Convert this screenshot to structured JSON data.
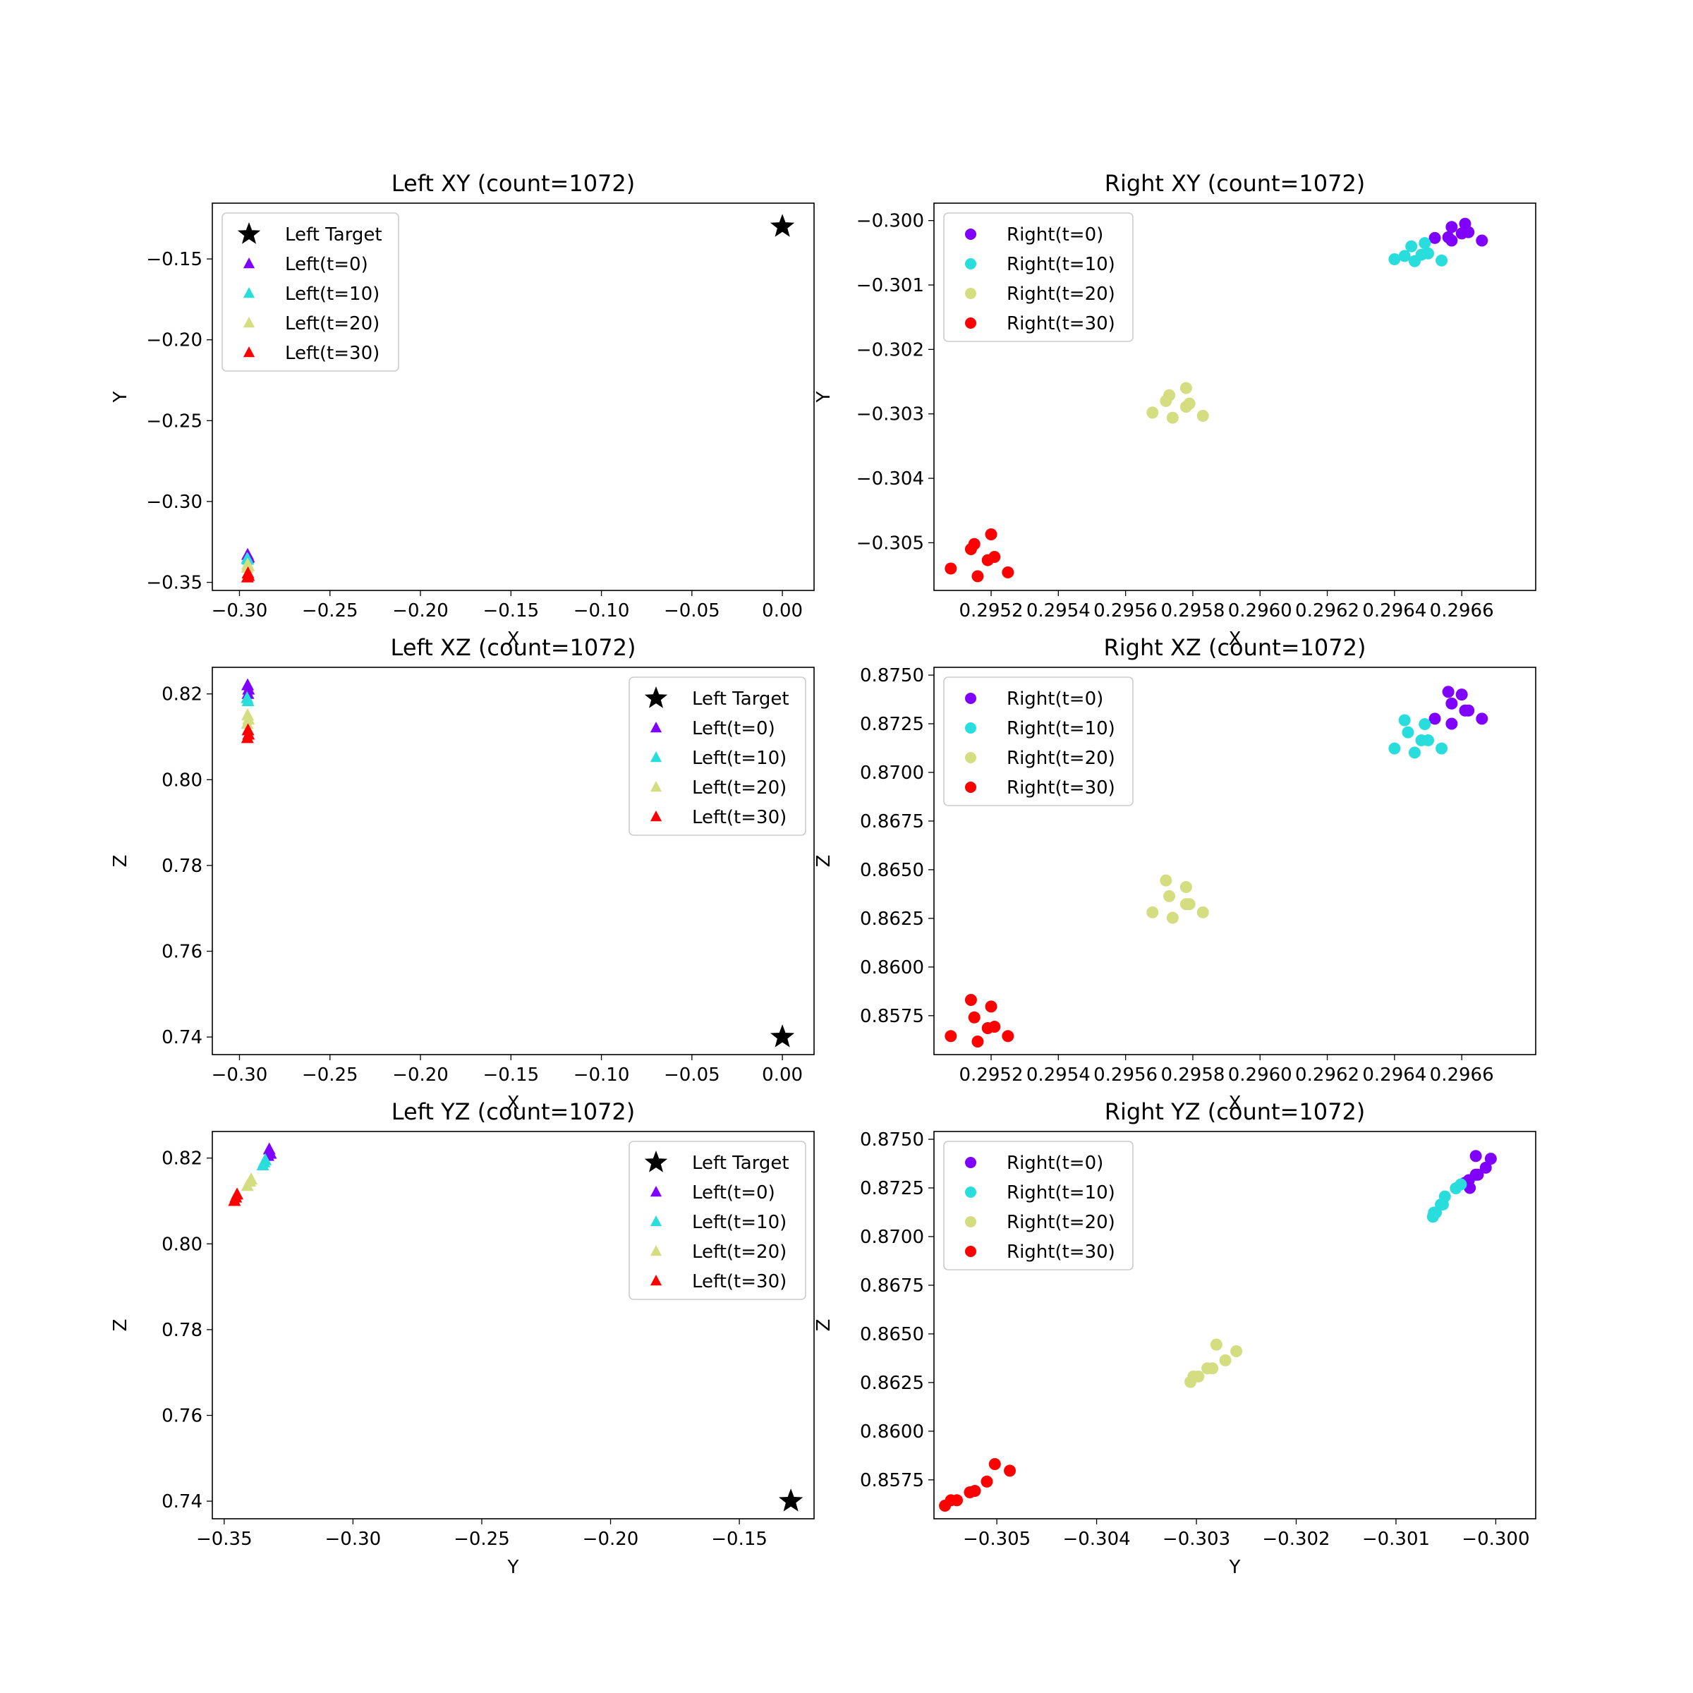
{
  "chart_data": [
    {
      "type": "scatter",
      "panel": "left-xy",
      "title": "Left XY (count=1072)",
      "xlabel": "X",
      "ylabel": "Y",
      "xlim": [
        -0.315,
        0.0175
      ],
      "ylim": [
        -0.355,
        -0.1155
      ],
      "xticks": [
        -0.3,
        -0.25,
        -0.2,
        -0.15,
        -0.1,
        -0.05,
        0.0
      ],
      "xtick_labels": [
        "−0.30",
        "−0.25",
        "−0.20",
        "−0.15",
        "−0.10",
        "−0.05",
        "0.00"
      ],
      "yticks": [
        -0.35,
        -0.3,
        -0.25,
        -0.2,
        -0.15
      ],
      "ytick_labels": [
        "−0.35",
        "−0.30",
        "−0.25",
        "−0.20",
        "−0.15"
      ],
      "legend_position": "upper left",
      "series": [
        {
          "name": "Left Target",
          "marker": "star",
          "color": "#000000",
          "points": [
            [
              0.0,
              -0.13
            ]
          ]
        },
        {
          "name": "Left(t=0)",
          "marker": "triangle",
          "color": "#8000ff",
          "points": [
            [
              -0.2955,
              -0.333
            ],
            [
              -0.295,
              -0.3345
            ],
            [
              -0.2953,
              -0.335
            ]
          ]
        },
        {
          "name": "Left(t=10)",
          "marker": "triangle",
          "color": "#2adddd",
          "points": [
            [
              -0.2958,
              -0.3355
            ],
            [
              -0.2953,
              -0.336
            ]
          ]
        },
        {
          "name": "Left(t=20)",
          "marker": "triangle",
          "color": "#d4dd80",
          "points": [
            [
              -0.2955,
              -0.339
            ],
            [
              -0.295,
              -0.34
            ],
            [
              -0.2957,
              -0.341
            ]
          ]
        },
        {
          "name": "Left(t=30)",
          "marker": "triangle",
          "color": "#ff0000",
          "points": [
            [
              -0.2953,
              -0.3445
            ],
            [
              -0.295,
              -0.346
            ],
            [
              -0.2956,
              -0.347
            ]
          ]
        }
      ]
    },
    {
      "type": "scatter",
      "panel": "right-xy",
      "title": "Right XY (count=1072)",
      "xlabel": "X",
      "ylabel": "Y",
      "xlim": [
        0.29503,
        0.29682
      ],
      "ylim": [
        -0.30574,
        -0.29973
      ],
      "xticks": [
        0.2952,
        0.2954,
        0.2956,
        0.2958,
        0.296,
        0.2962,
        0.2964,
        0.2966
      ],
      "xtick_labels": [
        "0.2952",
        "0.2954",
        "0.2956",
        "0.2958",
        "0.2960",
        "0.2962",
        "0.2964",
        "0.2966"
      ],
      "yticks": [
        -0.305,
        -0.304,
        -0.303,
        -0.302,
        -0.301,
        -0.3
      ],
      "ytick_labels": [
        "−0.305",
        "−0.304",
        "−0.303",
        "−0.302",
        "−0.301",
        "−0.300"
      ],
      "legend_position": "upper left",
      "series": [
        {
          "name": "Right(t=0)",
          "marker": "circle",
          "color": "#8000ff",
          "points": [
            [
              0.29652,
              -0.30027
            ],
            [
              0.29657,
              -0.3001
            ],
            [
              0.29657,
              -0.30031
            ],
            [
              0.2966,
              -0.3002
            ],
            [
              0.29661,
              -0.30005
            ],
            [
              0.29662,
              -0.30018
            ],
            [
              0.29666,
              -0.30031
            ],
            [
              0.29656,
              -0.30026
            ]
          ]
        },
        {
          "name": "Right(t=10)",
          "marker": "circle",
          "color": "#2adddd",
          "points": [
            [
              0.2964,
              -0.3006
            ],
            [
              0.29643,
              -0.30055
            ],
            [
              0.29645,
              -0.3004
            ],
            [
              0.29646,
              -0.30063
            ],
            [
              0.29648,
              -0.30053
            ],
            [
              0.29649,
              -0.30035
            ],
            [
              0.2965,
              -0.30051
            ],
            [
              0.29654,
              -0.30062
            ]
          ]
        },
        {
          "name": "Right(t=20)",
          "marker": "circle",
          "color": "#d4dd80",
          "points": [
            [
              0.29568,
              -0.30298
            ],
            [
              0.29572,
              -0.3028
            ],
            [
              0.29573,
              -0.30271
            ],
            [
              0.29574,
              -0.30306
            ],
            [
              0.29578,
              -0.3026
            ],
            [
              0.29578,
              -0.30289
            ],
            [
              0.29579,
              -0.30284
            ],
            [
              0.29583,
              -0.30303
            ]
          ]
        },
        {
          "name": "Right(t=30)",
          "marker": "circle",
          "color": "#ff0000",
          "points": [
            [
              0.29508,
              -0.3054
            ],
            [
              0.29514,
              -0.3051
            ],
            [
              0.29515,
              -0.30502
            ],
            [
              0.29516,
              -0.30552
            ],
            [
              0.29519,
              -0.30527
            ],
            [
              0.2952,
              -0.30487
            ],
            [
              0.29521,
              -0.30522
            ],
            [
              0.29525,
              -0.30546
            ]
          ]
        }
      ]
    },
    {
      "type": "scatter",
      "panel": "left-xz",
      "title": "Left XZ (count=1072)",
      "xlabel": "X",
      "ylabel": "Z",
      "xlim": [
        -0.315,
        0.0175
      ],
      "ylim": [
        0.7359,
        0.8262
      ],
      "xticks": [
        -0.3,
        -0.25,
        -0.2,
        -0.15,
        -0.1,
        -0.05,
        0.0
      ],
      "xtick_labels": [
        "−0.30",
        "−0.25",
        "−0.20",
        "−0.15",
        "−0.10",
        "−0.05",
        "0.00"
      ],
      "yticks": [
        0.74,
        0.76,
        0.78,
        0.8,
        0.82
      ],
      "ytick_labels": [
        "0.74",
        "0.76",
        "0.78",
        "0.80",
        "0.82"
      ],
      "legend_position": "upper right",
      "series": [
        {
          "name": "Left Target",
          "marker": "star",
          "color": "#000000",
          "points": [
            [
              0.0,
              0.74
            ]
          ]
        },
        {
          "name": "Left(t=0)",
          "marker": "triangle",
          "color": "#8000ff",
          "points": [
            [
              -0.2955,
              0.822
            ],
            [
              -0.295,
              0.821
            ],
            [
              -0.2953,
              0.82
            ]
          ]
        },
        {
          "name": "Left(t=10)",
          "marker": "triangle",
          "color": "#2adddd",
          "points": [
            [
              -0.2958,
              0.819
            ],
            [
              -0.2953,
              0.8183
            ]
          ]
        },
        {
          "name": "Left(t=20)",
          "marker": "triangle",
          "color": "#d4dd80",
          "points": [
            [
              -0.2955,
              0.815
            ],
            [
              -0.295,
              0.814
            ],
            [
              -0.2957,
              0.813
            ]
          ]
        },
        {
          "name": "Left(t=30)",
          "marker": "triangle",
          "color": "#ff0000",
          "points": [
            [
              -0.2953,
              0.8115
            ],
            [
              -0.295,
              0.8105
            ],
            [
              -0.2956,
              0.8097
            ]
          ]
        }
      ]
    },
    {
      "type": "scatter",
      "panel": "right-xz",
      "title": "Right XZ (count=1072)",
      "xlabel": "X",
      "ylabel": "Z",
      "xlim": [
        0.29503,
        0.29682
      ],
      "ylim": [
        0.8555,
        0.8754
      ],
      "xticks": [
        0.2952,
        0.2954,
        0.2956,
        0.2958,
        0.296,
        0.2962,
        0.2964,
        0.2966
      ],
      "xtick_labels": [
        "0.2952",
        "0.2954",
        "0.2956",
        "0.2958",
        "0.2960",
        "0.2962",
        "0.2964",
        "0.2966"
      ],
      "yticks": [
        0.8575,
        0.86,
        0.8625,
        0.865,
        0.8675,
        0.87,
        0.8725,
        0.875
      ],
      "ytick_labels": [
        "0.8575",
        "0.8600",
        "0.8625",
        "0.8650",
        "0.8675",
        "0.8700",
        "0.8725",
        "0.8750"
      ],
      "legend_position": "upper left",
      "series": [
        {
          "name": "Right(t=0)",
          "marker": "circle",
          "color": "#8000ff",
          "points": [
            [
              0.29652,
              0.87276
            ],
            [
              0.29656,
              0.87414
            ],
            [
              0.29657,
              0.87354
            ],
            [
              0.29657,
              0.8725
            ],
            [
              0.2966,
              0.874
            ],
            [
              0.29661,
              0.87318
            ],
            [
              0.29662,
              0.87318
            ],
            [
              0.29666,
              0.87276
            ]
          ]
        },
        {
          "name": "Right(t=10)",
          "marker": "circle",
          "color": "#2adddd",
          "points": [
            [
              0.2964,
              0.87123
            ],
            [
              0.29643,
              0.87268
            ],
            [
              0.29644,
              0.87206
            ],
            [
              0.29646,
              0.87102
            ],
            [
              0.29648,
              0.87165
            ],
            [
              0.29649,
              0.87248
            ],
            [
              0.2965,
              0.87165
            ],
            [
              0.29654,
              0.87123
            ]
          ]
        },
        {
          "name": "Right(t=20)",
          "marker": "circle",
          "color": "#d4dd80",
          "points": [
            [
              0.29568,
              0.86281
            ],
            [
              0.29572,
              0.86445
            ],
            [
              0.29573,
              0.86364
            ],
            [
              0.29574,
              0.86253
            ],
            [
              0.29578,
              0.86411
            ],
            [
              0.29578,
              0.86323
            ],
            [
              0.29579,
              0.86323
            ],
            [
              0.29583,
              0.86281
            ]
          ]
        },
        {
          "name": "Right(t=30)",
          "marker": "circle",
          "color": "#ff0000",
          "points": [
            [
              0.29508,
              0.85645
            ],
            [
              0.29514,
              0.85831
            ],
            [
              0.29515,
              0.85741
            ],
            [
              0.29516,
              0.85617
            ],
            [
              0.29519,
              0.85686
            ],
            [
              0.2952,
              0.85797
            ],
            [
              0.29521,
              0.85693
            ],
            [
              0.29525,
              0.85645
            ]
          ]
        }
      ]
    },
    {
      "type": "scatter",
      "panel": "left-yz",
      "title": "Left YZ (count=1072)",
      "xlabel": "Y",
      "ylabel": "Z",
      "xlim": [
        -0.3546,
        -0.121
      ],
      "ylim": [
        0.7359,
        0.8262
      ],
      "xticks": [
        -0.35,
        -0.3,
        -0.25,
        -0.2,
        -0.15
      ],
      "xtick_labels": [
        "−0.35",
        "−0.30",
        "−0.25",
        "−0.20",
        "−0.15"
      ],
      "yticks": [
        0.74,
        0.76,
        0.78,
        0.8,
        0.82
      ],
      "ytick_labels": [
        "0.74",
        "0.76",
        "0.78",
        "0.80",
        "0.82"
      ],
      "legend_position": "upper right",
      "series": [
        {
          "name": "Left Target",
          "marker": "star",
          "color": "#000000",
          "points": [
            [
              -0.13,
              0.74
            ]
          ]
        },
        {
          "name": "Left(t=0)",
          "marker": "triangle",
          "color": "#8000ff",
          "points": [
            [
              -0.3325,
              0.822
            ],
            [
              -0.332,
              0.821
            ],
            [
              -0.333,
              0.8205
            ]
          ]
        },
        {
          "name": "Left(t=10)",
          "marker": "triangle",
          "color": "#2adddd",
          "points": [
            [
              -0.3345,
              0.819
            ],
            [
              -0.335,
              0.8183
            ],
            [
              -0.334,
              0.8195
            ]
          ]
        },
        {
          "name": "Left(t=20)",
          "marker": "triangle",
          "color": "#d4dd80",
          "points": [
            [
              -0.34,
              0.8145
            ],
            [
              -0.341,
              0.8135
            ],
            [
              -0.3395,
              0.815
            ]
          ]
        },
        {
          "name": "Left(t=30)",
          "marker": "triangle",
          "color": "#ff0000",
          "points": [
            [
              -0.345,
              0.8115
            ],
            [
              -0.346,
              0.81
            ],
            [
              -0.3455,
              0.8108
            ]
          ]
        }
      ]
    },
    {
      "type": "scatter",
      "panel": "right-yz",
      "title": "Right YZ (count=1072)",
      "xlabel": "Y",
      "ylabel": "Z",
      "xlim": [
        -0.30563,
        -0.2996
      ],
      "ylim": [
        0.8555,
        0.8754
      ],
      "xticks": [
        -0.305,
        -0.304,
        -0.303,
        -0.302,
        -0.301,
        -0.3
      ],
      "xtick_labels": [
        "−0.305",
        "−0.304",
        "−0.303",
        "−0.302",
        "−0.301",
        "−0.300"
      ],
      "yticks": [
        0.8575,
        0.86,
        0.8625,
        0.865,
        0.8675,
        0.87,
        0.8725,
        0.875
      ],
      "ytick_labels": [
        "0.8575",
        "0.8600",
        "0.8625",
        "0.8650",
        "0.8675",
        "0.8700",
        "0.8725",
        "0.8750"
      ],
      "legend_position": "upper left",
      "series": [
        {
          "name": "Right(t=0)",
          "marker": "circle",
          "color": "#8000ff",
          "points": [
            [
              -0.30031,
              0.87276
            ],
            [
              -0.30027,
              0.8729
            ],
            [
              -0.30026,
              0.8725
            ],
            [
              -0.3002,
              0.87318
            ],
            [
              -0.30018,
              0.87318
            ],
            [
              -0.3001,
              0.87354
            ],
            [
              -0.30005,
              0.874
            ],
            [
              -0.3002,
              0.87414
            ]
          ]
        },
        {
          "name": "Right(t=10)",
          "marker": "circle",
          "color": "#2adddd",
          "points": [
            [
              -0.30063,
              0.87102
            ],
            [
              -0.30062,
              0.87123
            ],
            [
              -0.3006,
              0.87123
            ],
            [
              -0.30055,
              0.87165
            ],
            [
              -0.30053,
              0.87165
            ],
            [
              -0.30051,
              0.87206
            ],
            [
              -0.3004,
              0.87248
            ],
            [
              -0.30035,
              0.87268
            ]
          ]
        },
        {
          "name": "Right(t=20)",
          "marker": "circle",
          "color": "#d4dd80",
          "points": [
            [
              -0.30306,
              0.86253
            ],
            [
              -0.30303,
              0.86281
            ],
            [
              -0.30298,
              0.86281
            ],
            [
              -0.30289,
              0.86323
            ],
            [
              -0.30284,
              0.86323
            ],
            [
              -0.3028,
              0.86445
            ],
            [
              -0.30271,
              0.86364
            ],
            [
              -0.3026,
              0.86411
            ]
          ]
        },
        {
          "name": "Right(t=30)",
          "marker": "circle",
          "color": "#ff0000",
          "points": [
            [
              -0.30552,
              0.85617
            ],
            [
              -0.30546,
              0.85645
            ],
            [
              -0.3054,
              0.85645
            ],
            [
              -0.30527,
              0.85686
            ],
            [
              -0.30522,
              0.85693
            ],
            [
              -0.3051,
              0.85741
            ],
            [
              -0.30502,
              0.85831
            ],
            [
              -0.30487,
              0.85797
            ]
          ]
        }
      ]
    }
  ]
}
